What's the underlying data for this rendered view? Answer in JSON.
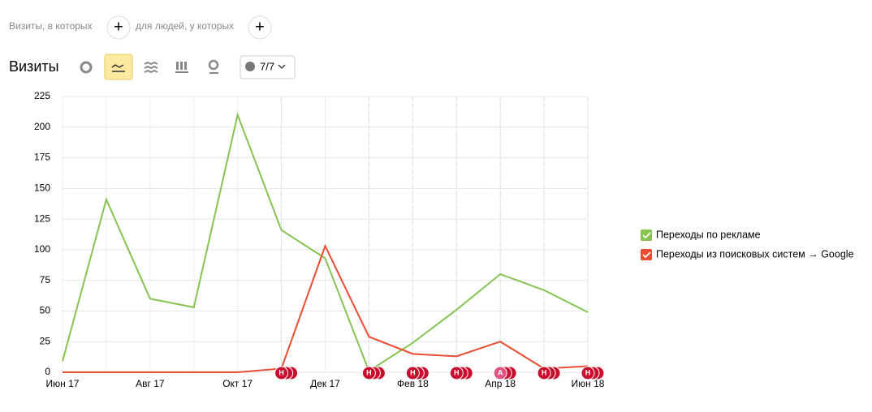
{
  "filters": {
    "visits_label": "Визиты, в которых",
    "people_label": "для людей, у которых",
    "add": "+"
  },
  "toolbar": {
    "title": "Визиты",
    "comments": "7/7"
  },
  "chart_data": {
    "type": "line",
    "categories": [
      "Июн 17",
      null,
      "Авг 17",
      null,
      "Окт 17",
      null,
      "Дек 17",
      null,
      "Фев 18",
      null,
      "Апр 18",
      null,
      "Июн 18"
    ],
    "series": [
      {
        "name": "Переходы по рекламе",
        "color": "#86c352",
        "values": [
          9,
          141,
          60,
          53,
          210,
          116,
          93,
          1,
          24,
          51,
          80,
          67,
          49
        ]
      },
      {
        "name": "Переходы из поисковых систем → Google",
        "color": "#ea4b33",
        "values": [
          0,
          0,
          0,
          0,
          0,
          3,
          103,
          29,
          15,
          13,
          25,
          3,
          5
        ]
      }
    ],
    "ylim": [
      0,
      225
    ],
    "yticks": [
      0,
      25,
      50,
      75,
      100,
      125,
      150,
      175,
      200,
      225
    ],
    "grid": true,
    "legend": "right",
    "annotations": [
      {
        "x": 5,
        "label": "Н"
      },
      {
        "x": 7,
        "label": "Н"
      },
      {
        "x": 8,
        "label": "Н"
      },
      {
        "x": 9,
        "label": "Н"
      },
      {
        "x": 10,
        "label": "А"
      },
      {
        "x": 11,
        "label": "Н"
      },
      {
        "x": 12,
        "label": "Н"
      }
    ]
  }
}
